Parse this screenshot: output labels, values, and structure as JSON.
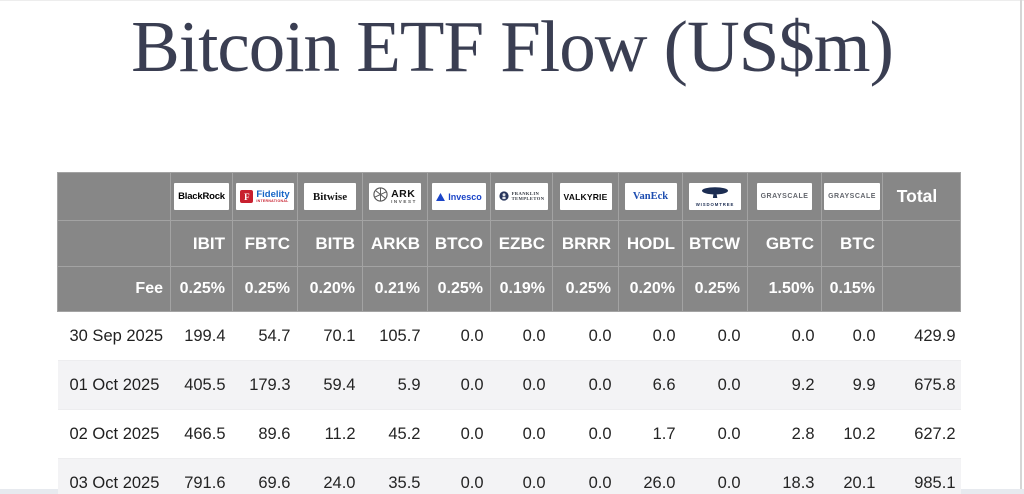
{
  "page": {
    "title": "Bitcoin ETF Flow (US$m)"
  },
  "colors": {
    "title_text": "#3a3e52",
    "header_bg": "#878787",
    "header_text": "#ffffff",
    "row_alt_bg": "#f3f3f5",
    "fidelity_red": "#c8202f",
    "fidelity_blue": "#1565c6",
    "invesco_blue": "#1b45c8",
    "vaneck_blue": "#1d4db0",
    "wisdomtree_navy": "#1c2d52",
    "grayscale_gray": "#63666d"
  },
  "table": {
    "fee_label": "Fee",
    "total_label": "Total",
    "issuers": [
      {
        "name": "blackrock",
        "logo_text": "BlackRock",
        "ticker": "IBIT",
        "fee": "0.25%"
      },
      {
        "name": "fidelity",
        "logo_icon_letter": "F",
        "logo_text": "Fidelity",
        "logo_sub": "INTERNATIONAL",
        "ticker": "FBTC",
        "fee": "0.25%"
      },
      {
        "name": "bitwise",
        "logo_text": "Bitwise",
        "ticker": "BITB",
        "fee": "0.20%"
      },
      {
        "name": "ark-invest",
        "logo_text": "ARK",
        "logo_sub": "INVEST",
        "ticker": "ARKB",
        "fee": "0.21%"
      },
      {
        "name": "invesco",
        "logo_text": "Invesco",
        "ticker": "BTCO",
        "fee": "0.25%"
      },
      {
        "name": "franklin-templeton",
        "logo_text": "FRANKLIN",
        "logo_sub": "TEMPLETON",
        "ticker": "EZBC",
        "fee": "0.19%"
      },
      {
        "name": "valkyrie",
        "logo_text": "VALKYRIE",
        "ticker": "BRRR",
        "fee": "0.25%"
      },
      {
        "name": "vaneck",
        "logo_text": "VanEck",
        "ticker": "HODL",
        "fee": "0.20%"
      },
      {
        "name": "wisdomtree",
        "logo_text": "WISDOMTREE",
        "ticker": "BTCW",
        "fee": "0.25%"
      },
      {
        "name": "grayscale-gbtc",
        "logo_text": "GRAYSCALE",
        "ticker": "GBTC",
        "fee": "1.50%"
      },
      {
        "name": "grayscale-btc",
        "logo_text": "GRAYSCALE",
        "ticker": "BTC",
        "fee": "0.15%"
      }
    ],
    "rows": [
      {
        "date": "30 Sep 2025",
        "values": [
          "199.4",
          "54.7",
          "70.1",
          "105.7",
          "0.0",
          "0.0",
          "0.0",
          "0.0",
          "0.0",
          "0.0",
          "0.0"
        ],
        "total": "429.9"
      },
      {
        "date": "01 Oct 2025",
        "values": [
          "405.5",
          "179.3",
          "59.4",
          "5.9",
          "0.0",
          "0.0",
          "0.0",
          "6.6",
          "0.0",
          "9.2",
          "9.9"
        ],
        "total": "675.8"
      },
      {
        "date": "02 Oct 2025",
        "values": [
          "466.5",
          "89.6",
          "11.2",
          "45.2",
          "0.0",
          "0.0",
          "0.0",
          "1.7",
          "0.0",
          "2.8",
          "10.2"
        ],
        "total": "627.2"
      },
      {
        "date": "03 Oct 2025",
        "values": [
          "791.6",
          "69.6",
          "24.0",
          "35.5",
          "0.0",
          "0.0",
          "0.0",
          "26.0",
          "0.0",
          "18.3",
          "20.1"
        ],
        "total": "985.1"
      }
    ]
  }
}
